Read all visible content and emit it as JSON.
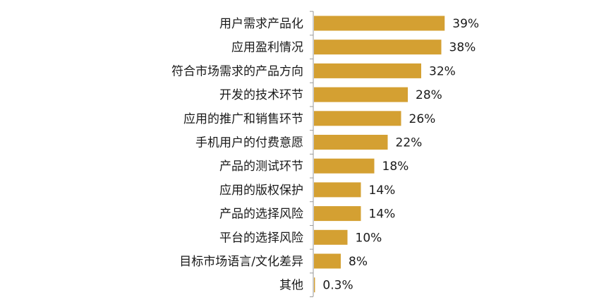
{
  "chart_data": {
    "type": "bar",
    "orientation": "horizontal",
    "categories": [
      "用户需求产品化",
      "应用盈利情况",
      "符合市场需求的产品方向",
      "开发的技术环节",
      "应用的推广和销售环节",
      "手机用户的付费意愿",
      "产品的测试环节",
      "应用的版权保护",
      "产品的选择风险",
      "平台的选择风险",
      "目标市场语言/文化差异",
      "其他"
    ],
    "values": [
      39,
      38,
      32,
      28,
      26,
      22,
      18,
      14,
      14,
      10,
      8,
      0.3
    ],
    "value_labels": [
      "39%",
      "38%",
      "32%",
      "28%",
      "26%",
      "22%",
      "18%",
      "14%",
      "14%",
      "10%",
      "8%",
      "0.3%"
    ],
    "unit": "%",
    "xlim": [
      0,
      50
    ],
    "grid": false,
    "legend": "none",
    "colors": {
      "bar": "#D4A032",
      "axis": "#999999",
      "text": "#1a1a1a"
    }
  }
}
